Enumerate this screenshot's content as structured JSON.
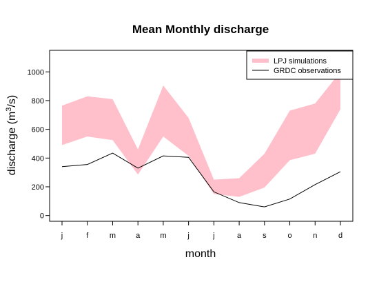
{
  "chart_data": {
    "type": "area",
    "title": "Mean Monthly discharge",
    "xlabel": "month",
    "ylabel_main": "discharge (m",
    "ylabel_sup": "3",
    "ylabel_tail": "/s)",
    "categories": [
      "j",
      "f",
      "m",
      "a",
      "m",
      "j",
      "j",
      "a",
      "s",
      "o",
      "n",
      "d"
    ],
    "yticks": [
      "0",
      "200",
      "400",
      "600",
      "800",
      "1000"
    ],
    "ytick_values": [
      0,
      200,
      400,
      600,
      800,
      1000
    ],
    "ylim": [
      -40,
      1150
    ],
    "grid": false,
    "legend_position": "top-right",
    "series": [
      {
        "name": "LPJ simulations",
        "kind": "band",
        "color": "#ffc0cb",
        "lower": [
          490,
          550,
          525,
          285,
          550,
          415,
          150,
          130,
          195,
          385,
          430,
          740
        ],
        "upper": [
          765,
          830,
          810,
          460,
          905,
          680,
          250,
          260,
          430,
          730,
          780,
          1000
        ]
      },
      {
        "name": "GRDC observations",
        "kind": "line",
        "color": "#000000",
        "values": [
          340,
          355,
          435,
          330,
          415,
          405,
          165,
          90,
          60,
          115,
          215,
          305
        ]
      }
    ]
  }
}
